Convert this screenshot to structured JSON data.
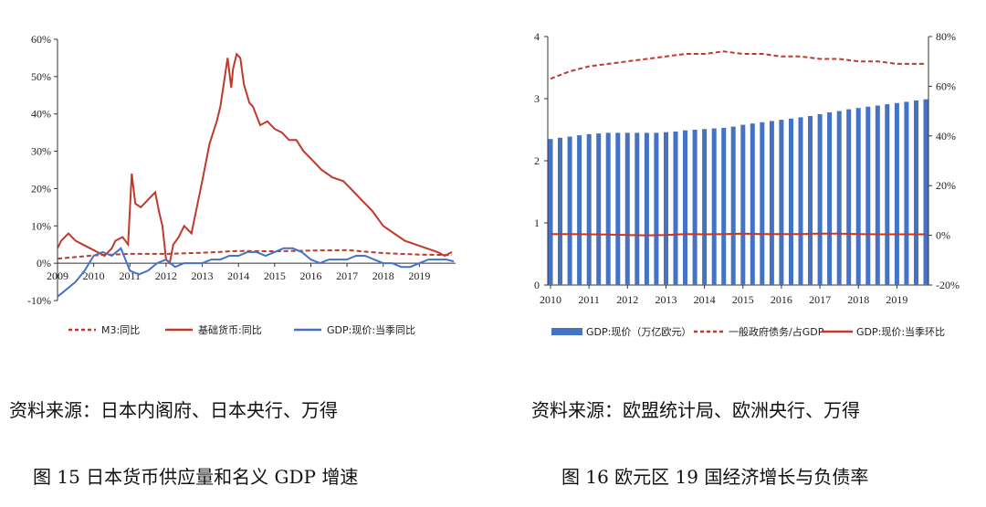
{
  "charts": {
    "left": {
      "source": "资料来源：日本内阁府、日本央行、万得",
      "caption": "图 15 日本货币供应量和名义 GDP 增速"
    },
    "right": {
      "source": "资料来源：欧盟统计局、欧洲央行、万得",
      "caption": "图 16 欧元区 19 国经济增长与负债率"
    }
  },
  "colors": {
    "red": "#C0392B",
    "blue": "#4472C4",
    "bar": "#4472C4"
  },
  "chart_data": [
    {
      "type": "line",
      "title": "",
      "xlabel": "",
      "ylabel": "",
      "x_ticks": [
        "2009",
        "2010",
        "2011",
        "2012",
        "2013",
        "2014",
        "2015",
        "2016",
        "2017",
        "2018",
        "2019"
      ],
      "y_ticks": [
        "60%",
        "50%",
        "40%",
        "30%",
        "20%",
        "10%",
        "0%",
        "-10%"
      ],
      "xlim": [
        2009,
        2020
      ],
      "ylim": [
        -10,
        60
      ],
      "legend_position": "bottom",
      "series": [
        {
          "name": "M3:同比",
          "style": "dashed",
          "x": [
            2009,
            2010,
            2011,
            2012,
            2013,
            2014,
            2015,
            2016,
            2017,
            2018,
            2019,
            2019.9
          ],
          "y": [
            1.2,
            2.1,
            2.5,
            2.5,
            2.8,
            3.3,
            3.2,
            3.4,
            3.5,
            2.7,
            2.3,
            2.2
          ]
        },
        {
          "name": "基础货币:同比",
          "style": "solid",
          "x": [
            2009,
            2009.1,
            2009.3,
            2009.5,
            2009.7,
            2009.9,
            2010.1,
            2010.3,
            2010.5,
            2010.6,
            2010.8,
            2010.95,
            2011.05,
            2011.15,
            2011.3,
            2011.5,
            2011.7,
            2011.8,
            2011.9,
            2012.0,
            2012.1,
            2012.2,
            2012.35,
            2012.5,
            2012.7,
            2012.85,
            2013.0,
            2013.2,
            2013.4,
            2013.5,
            2013.7,
            2013.8,
            2013.85,
            2013.95,
            2014.05,
            2014.15,
            2014.3,
            2014.4,
            2014.6,
            2014.8,
            2015.0,
            2015.2,
            2015.4,
            2015.6,
            2015.8,
            2016.0,
            2016.3,
            2016.6,
            2016.9,
            2017.2,
            2017.4,
            2017.7,
            2018.0,
            2018.3,
            2018.6,
            2018.9,
            2019.2,
            2019.5,
            2019.7,
            2019.9
          ],
          "y": [
            4,
            6,
            8,
            6,
            5,
            4,
            3,
            2,
            4,
            6,
            7,
            5,
            24,
            16,
            15,
            17,
            19,
            14,
            10,
            1,
            0,
            5,
            7,
            10,
            8,
            15,
            22,
            32,
            38,
            42,
            55,
            47,
            52,
            56,
            55,
            48,
            43,
            42,
            37,
            38,
            36,
            35,
            33,
            33,
            30,
            28,
            25,
            23,
            22,
            19,
            17,
            14,
            10,
            8,
            6,
            5,
            4,
            3,
            2,
            3
          ]
        },
        {
          "name": "GDP:现价:当季同比",
          "style": "solid",
          "x": [
            2009,
            2009.25,
            2009.5,
            2009.75,
            2010,
            2010.25,
            2010.5,
            2010.75,
            2011,
            2011.25,
            2011.5,
            2011.75,
            2012,
            2012.25,
            2012.5,
            2012.75,
            2013,
            2013.25,
            2013.5,
            2013.75,
            2014,
            2014.25,
            2014.5,
            2014.75,
            2015,
            2015.25,
            2015.5,
            2015.75,
            2016,
            2016.25,
            2016.5,
            2016.75,
            2017,
            2017.25,
            2017.5,
            2017.75,
            2018,
            2018.25,
            2018.5,
            2018.75,
            2019,
            2019.25,
            2019.5,
            2019.75,
            2019.95
          ],
          "y": [
            -9,
            -7,
            -5,
            -2,
            2,
            3,
            2,
            4,
            -2,
            -3,
            -2,
            0,
            1,
            -1,
            0,
            0,
            0,
            1,
            1,
            2,
            2,
            3,
            3,
            2,
            3,
            4,
            4,
            3,
            1,
            0,
            1,
            1,
            1,
            2,
            2,
            1,
            0,
            0,
            -1,
            -1,
            0,
            1,
            1,
            1,
            0.5
          ]
        }
      ]
    },
    {
      "type": "bar",
      "title": "",
      "xlabel": "",
      "ylabel": "",
      "y2label": "",
      "x_ticks": [
        "2010",
        "2011",
        "2012",
        "2013",
        "2014",
        "2015",
        "2016",
        "2017",
        "2018",
        "2019"
      ],
      "y_ticks": [
        "0",
        "1",
        "2",
        "3",
        "4"
      ],
      "y2_ticks": [
        "80%",
        "60%",
        "40%",
        "20%",
        "0%",
        "-20%"
      ],
      "ylim": [
        0,
        4
      ],
      "y2lim": [
        -20,
        80
      ],
      "legend_position": "bottom",
      "series": [
        {
          "name": "GDP:现价（万亿欧元）",
          "axis": "left",
          "style": "bar",
          "x": [
            2010,
            2010.25,
            2010.5,
            2010.75,
            2011,
            2011.25,
            2011.5,
            2011.75,
            2012,
            2012.25,
            2012.5,
            2012.75,
            2013,
            2013.25,
            2013.5,
            2013.75,
            2014,
            2014.25,
            2014.5,
            2014.75,
            2015,
            2015.25,
            2015.5,
            2015.75,
            2016,
            2016.25,
            2016.5,
            2016.75,
            2017,
            2017.25,
            2017.5,
            2017.75,
            2018,
            2018.25,
            2018.5,
            2018.75,
            2019,
            2019.25,
            2019.5,
            2019.75
          ],
          "y": [
            2.35,
            2.37,
            2.39,
            2.41,
            2.43,
            2.44,
            2.45,
            2.45,
            2.45,
            2.45,
            2.45,
            2.45,
            2.46,
            2.47,
            2.49,
            2.5,
            2.51,
            2.52,
            2.53,
            2.55,
            2.58,
            2.6,
            2.62,
            2.64,
            2.66,
            2.68,
            2.7,
            2.72,
            2.75,
            2.78,
            2.8,
            2.83,
            2.85,
            2.87,
            2.89,
            2.91,
            2.93,
            2.95,
            2.97,
            2.99
          ]
        },
        {
          "name": "一般政府债务/占GDP",
          "axis": "right",
          "style": "dashed",
          "x": [
            2010,
            2010.5,
            2011,
            2011.5,
            2012,
            2012.5,
            2013,
            2013.5,
            2014,
            2014.5,
            2015,
            2015.5,
            2016,
            2016.5,
            2017,
            2017.5,
            2018,
            2018.5,
            2019,
            2019.75
          ],
          "y": [
            63,
            66,
            68,
            69,
            70,
            71,
            72,
            73,
            73,
            74,
            73,
            73,
            72,
            72,
            71,
            71,
            70,
            70,
            69,
            69
          ]
        },
        {
          "name": "GDP:现价:当季环比",
          "axis": "right",
          "style": "solid",
          "x": [
            2010,
            2010.5,
            2011,
            2011.5,
            2012,
            2012.5,
            2013,
            2013.5,
            2014,
            2014.5,
            2015,
            2015.5,
            2016,
            2016.5,
            2017,
            2017.5,
            2018,
            2018.5,
            2019,
            2019.75
          ],
          "y": [
            0.5,
            0.5,
            0.4,
            0.3,
            0.1,
            0.0,
            0.1,
            0.5,
            0.4,
            0.5,
            0.7,
            0.5,
            0.5,
            0.5,
            0.7,
            0.7,
            0.5,
            0.4,
            0.4,
            0.4
          ]
        }
      ]
    }
  ]
}
